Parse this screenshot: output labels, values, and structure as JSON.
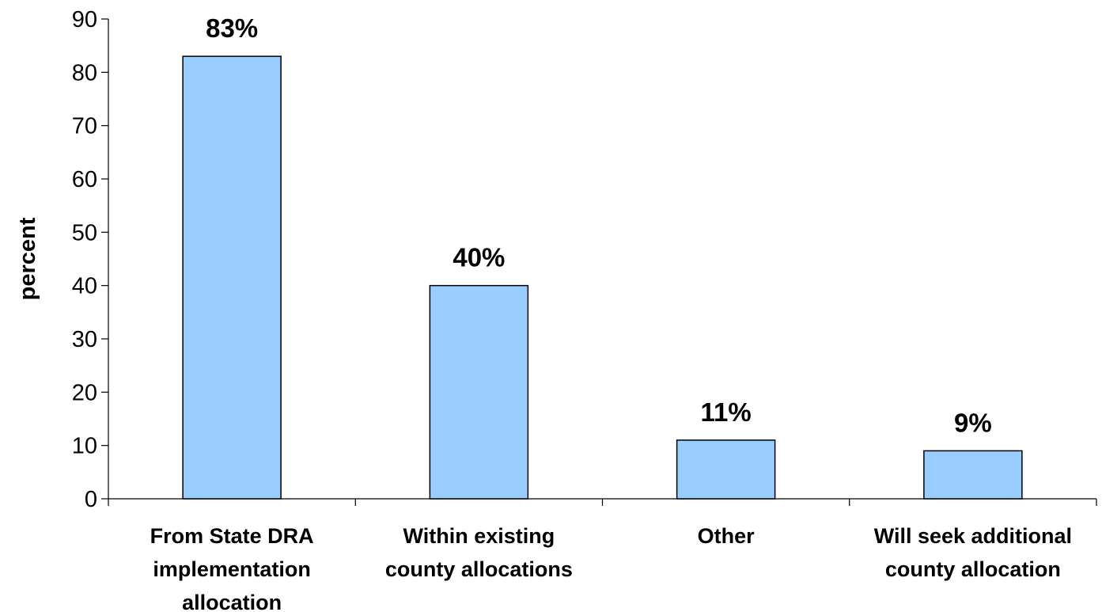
{
  "chart_data": {
    "type": "bar",
    "categories": [
      [
        "From State DRA",
        "implementation",
        "allocation"
      ],
      [
        "Within existing",
        "county allocations"
      ],
      [
        "Other"
      ],
      [
        "Will seek additional",
        "county allocation"
      ]
    ],
    "values": [
      83,
      40,
      11,
      9
    ],
    "data_labels": [
      "83%",
      "40%",
      "11%",
      "9%"
    ],
    "ylabel": "percent",
    "ylim": [
      0,
      90
    ],
    "yticks": [
      0,
      10,
      20,
      30,
      40,
      50,
      60,
      70,
      80,
      90
    ],
    "bar_color": "#99ccff",
    "bar_stroke": "#000000",
    "grid": false,
    "legend": "none"
  }
}
